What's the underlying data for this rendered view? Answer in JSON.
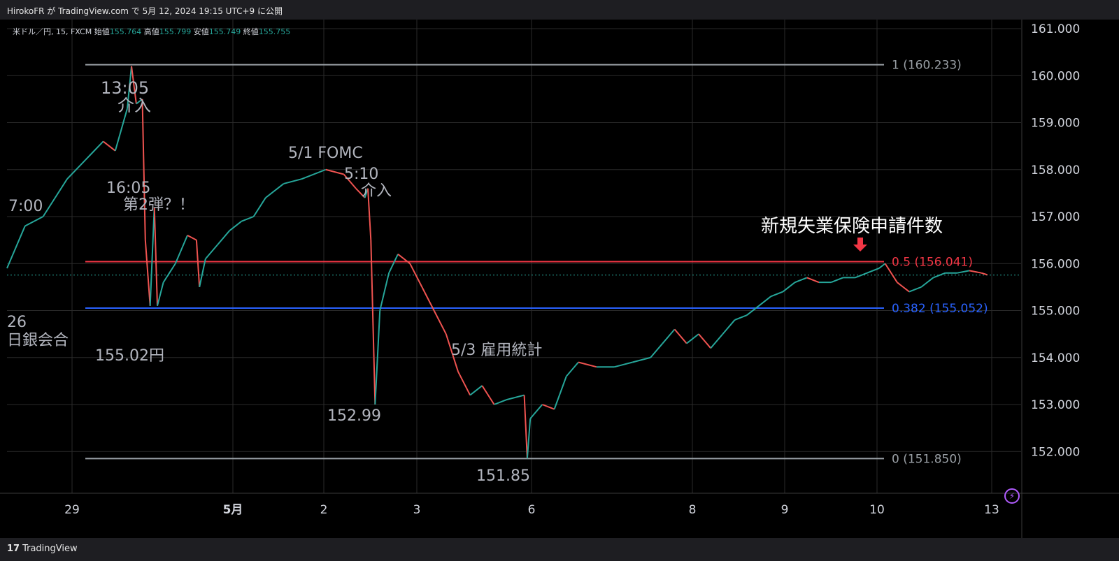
{
  "header": {
    "publish_line": "HirokoFR が TradingView.com で 5月 12, 2024 19:15 UTC+9 に公開"
  },
  "symbol_bar": {
    "symbol": "米ドル／円, 15, FXCM",
    "open_label": "始値",
    "open": "155.764",
    "high_label": "高値",
    "high": "155.799",
    "low_label": "安値",
    "low": "155.749",
    "close_label": "終値",
    "close": "155.755"
  },
  "footer": {
    "brand": "TradingView"
  },
  "colors": {
    "background": "#000000",
    "grid": "#2a2a2a",
    "up": "#26a69a",
    "down": "#ef5350",
    "fib_high": "#9aa0a6",
    "fib_mid": "#f23645",
    "fib_382": "#2962ff",
    "annotation": "#b2b5be"
  },
  "chart_data": {
    "type": "line",
    "title": "",
    "y_axis": {
      "min": 151.0,
      "max": 161.2,
      "ticks": [
        "161.000",
        "160.000",
        "159.000",
        "158.000",
        "157.000",
        "156.000",
        "155.000",
        "154.000",
        "153.000",
        "152.000"
      ]
    },
    "x_axis": {
      "ticks": [
        "29",
        "5月",
        "2",
        "3",
        "6",
        "8",
        "9",
        "10",
        "13"
      ]
    },
    "series": [
      {
        "values": [
          [
            0,
            155.9
          ],
          [
            0.3,
            156.8
          ],
          [
            0.6,
            157.0
          ],
          [
            1.0,
            157.8
          ],
          [
            1.3,
            158.2
          ],
          [
            1.6,
            158.6
          ],
          [
            1.8,
            158.4
          ],
          [
            2.0,
            159.3
          ],
          [
            2.07,
            160.2
          ],
          [
            2.15,
            159.4
          ],
          [
            2.25,
            159.5
          ],
          [
            2.3,
            156.5
          ],
          [
            2.38,
            155.1
          ],
          [
            2.45,
            157.2
          ],
          [
            2.5,
            155.1
          ],
          [
            2.6,
            155.6
          ],
          [
            2.8,
            156.0
          ],
          [
            3.0,
            156.6
          ],
          [
            3.15,
            156.5
          ],
          [
            3.2,
            155.5
          ],
          [
            3.3,
            156.1
          ],
          [
            3.5,
            156.4
          ],
          [
            3.7,
            156.7
          ],
          [
            3.9,
            156.9
          ],
          [
            4.1,
            157.0
          ],
          [
            4.3,
            157.4
          ],
          [
            4.6,
            157.7
          ],
          [
            4.9,
            157.8
          ],
          [
            5.3,
            158.0
          ],
          [
            5.6,
            157.9
          ],
          [
            5.8,
            157.6
          ],
          [
            5.95,
            157.4
          ],
          [
            6.0,
            157.6
          ],
          [
            6.05,
            156.5
          ],
          [
            6.1,
            154.0
          ],
          [
            6.12,
            153.0
          ],
          [
            6.2,
            155.0
          ],
          [
            6.35,
            155.8
          ],
          [
            6.5,
            156.2
          ],
          [
            6.7,
            156.0
          ],
          [
            6.9,
            155.5
          ],
          [
            7.1,
            155.0
          ],
          [
            7.3,
            154.5
          ],
          [
            7.5,
            153.7
          ],
          [
            7.7,
            153.2
          ],
          [
            7.9,
            153.4
          ],
          [
            8.1,
            153.0
          ],
          [
            8.3,
            153.1
          ],
          [
            8.6,
            153.2
          ],
          [
            8.65,
            151.85
          ],
          [
            8.7,
            152.7
          ],
          [
            8.9,
            153.0
          ],
          [
            9.1,
            152.9
          ],
          [
            9.3,
            153.6
          ],
          [
            9.5,
            153.9
          ],
          [
            9.8,
            153.8
          ],
          [
            10.1,
            153.8
          ],
          [
            10.4,
            153.9
          ],
          [
            10.7,
            154.0
          ],
          [
            10.9,
            154.3
          ],
          [
            11.1,
            154.6
          ],
          [
            11.3,
            154.3
          ],
          [
            11.5,
            154.5
          ],
          [
            11.7,
            154.2
          ],
          [
            11.9,
            154.5
          ],
          [
            12.1,
            154.8
          ],
          [
            12.3,
            154.9
          ],
          [
            12.5,
            155.1
          ],
          [
            12.7,
            155.3
          ],
          [
            12.9,
            155.4
          ],
          [
            13.1,
            155.6
          ],
          [
            13.3,
            155.7
          ],
          [
            13.5,
            155.6
          ],
          [
            13.7,
            155.6
          ],
          [
            13.9,
            155.7
          ],
          [
            14.1,
            155.7
          ],
          [
            14.3,
            155.8
          ],
          [
            14.5,
            155.9
          ],
          [
            14.6,
            156.0
          ],
          [
            14.7,
            155.8
          ],
          [
            14.8,
            155.6
          ],
          [
            14.9,
            155.5
          ],
          [
            15.0,
            155.4
          ],
          [
            15.2,
            155.5
          ],
          [
            15.4,
            155.7
          ],
          [
            15.6,
            155.8
          ],
          [
            15.8,
            155.8
          ],
          [
            16.0,
            155.85
          ],
          [
            16.2,
            155.8
          ],
          [
            16.3,
            155.76
          ]
        ]
      }
    ],
    "fib_levels": [
      {
        "label": "1 (160.233)",
        "value": 160.233
      },
      {
        "label": "0.5 (156.041)",
        "value": 156.041
      },
      {
        "label": "0.382 (155.052)",
        "value": 155.052
      },
      {
        "label": "0 (151.850)",
        "value": 151.85
      }
    ],
    "last_price": 155.755,
    "annotations": [
      {
        "text": "13:05"
      },
      {
        "text": "介入"
      },
      {
        "text": "16:05"
      },
      {
        "text": "第2弾？！"
      },
      {
        "text": "5/1 FOMC"
      },
      {
        "text": "5:10"
      },
      {
        "text": "介入"
      },
      {
        "text": "5/3 雇用統計"
      },
      {
        "text": "7:00"
      },
      {
        "text": "26"
      },
      {
        "text": "日銀会合"
      },
      {
        "text": "155.02円"
      },
      {
        "text": "152.99"
      },
      {
        "text": "151.85"
      },
      {
        "text": "新規失業保険申請件数"
      }
    ]
  }
}
